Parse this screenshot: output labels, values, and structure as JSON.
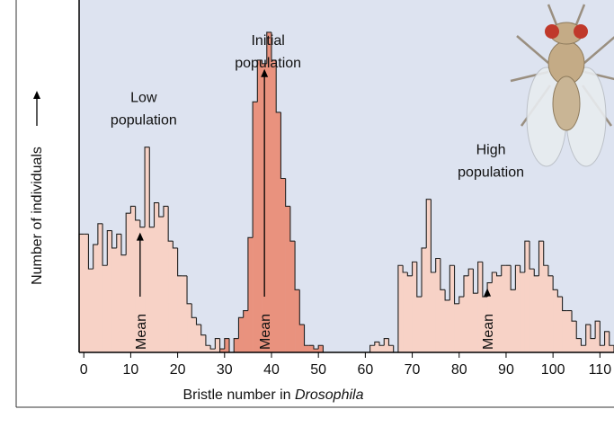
{
  "chart_data": {
    "type": "histogram",
    "x_label": [
      "Bristle number in",
      "Drosophila"
    ],
    "y_label": "Number of individuals",
    "xlim": [
      -1,
      113
    ],
    "ylim": [
      0,
      100
    ],
    "xticks": [
      0,
      10,
      20,
      30,
      40,
      50,
      60,
      70,
      80,
      90,
      100,
      110
    ],
    "series": [
      {
        "name": [
          "Low",
          "population"
        ],
        "color": "#f7d2c6",
        "mean": 12,
        "mean_label": "Mean",
        "bins": [
          -1,
          0,
          1,
          2,
          3,
          4,
          5,
          6,
          7,
          8,
          9,
          10,
          11,
          12,
          13,
          14,
          15,
          16,
          17,
          18,
          19,
          20,
          21,
          22,
          23,
          24,
          25,
          26,
          27,
          28,
          29,
          30
        ],
        "values": [
          34,
          34,
          24,
          31,
          37,
          25,
          35,
          30,
          34,
          28,
          40,
          42,
          38,
          36,
          59,
          36,
          43,
          39,
          42,
          32,
          30,
          22,
          22,
          14,
          10,
          8,
          5,
          2,
          1,
          4,
          1
        ]
      },
      {
        "name": [
          "Initial",
          "population"
        ],
        "color": "#e9927e",
        "mean": 38.5,
        "mean_label": "Mean",
        "bins": [
          29,
          30,
          31,
          32,
          33,
          34,
          35,
          36,
          37,
          38,
          39,
          40,
          41,
          42,
          43,
          44,
          45,
          46,
          47,
          48,
          49,
          50,
          51,
          52
        ],
        "values": [
          1,
          4,
          0,
          4,
          10,
          12,
          33,
          72,
          84,
          83,
          92,
          84,
          69,
          50,
          42,
          32,
          18,
          8,
          2,
          2,
          1,
          2,
          0
        ]
      },
      {
        "name": [
          "High",
          "population"
        ],
        "color": "#f7d2c6",
        "mean": 86,
        "mean_label": "Mean",
        "bins": [
          61,
          62,
          63,
          64,
          65,
          66,
          67,
          68,
          69,
          70,
          71,
          72,
          73,
          74,
          75,
          76,
          77,
          78,
          79,
          80,
          81,
          82,
          83,
          84,
          85,
          86,
          87,
          88,
          89,
          90,
          91,
          92,
          93,
          94,
          95,
          96,
          97,
          98,
          99,
          100,
          101,
          102,
          103,
          104,
          105,
          106,
          107,
          108,
          109,
          110,
          111,
          112,
          113
        ],
        "values": [
          2,
          3,
          2,
          4,
          2,
          0,
          25,
          23,
          22,
          26,
          16,
          30,
          44,
          23,
          27,
          18,
          15,
          25,
          14,
          16,
          22,
          24,
          17,
          26,
          16,
          20,
          23,
          22,
          25,
          25,
          18,
          25,
          23,
          32,
          24,
          22,
          32,
          25,
          22,
          18,
          16,
          12,
          12,
          9,
          4,
          2,
          8,
          4,
          9,
          2,
          6,
          2
        ]
      }
    ]
  }
}
